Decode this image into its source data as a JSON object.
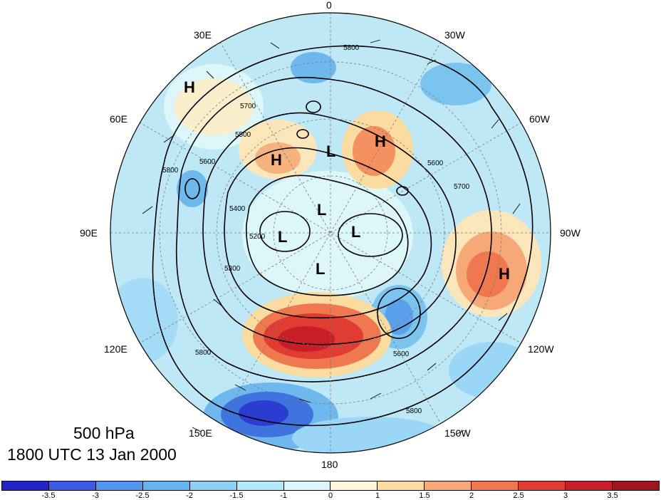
{
  "title": {
    "level": "500 hPa",
    "time": "1800 UTC 13 Jan 2000"
  },
  "longitude_labels": [
    "0",
    "30W",
    "60W",
    "90W",
    "120W",
    "150W",
    "180",
    "150E",
    "120E",
    "90E",
    "60E",
    "30E"
  ],
  "pressure_centers": [
    "H",
    "H",
    "H",
    "H",
    "L",
    "L",
    "L",
    "L",
    "L"
  ],
  "contour_labels": [
    "5800",
    "5800",
    "5700",
    "5600",
    "5500",
    "5400",
    "5300",
    "5200",
    "5600",
    "5700",
    "5800",
    "5600",
    "5800"
  ],
  "colorbar": {
    "tick_labels": [
      "-3.5",
      "-3",
      "-2.5",
      "-2",
      "-1.5",
      "-1",
      "0",
      "1",
      "1.5",
      "2",
      "2.5",
      "3",
      "3.5"
    ],
    "colors": [
      "#2323c8",
      "#3c5ae6",
      "#5096ee",
      "#64b4f2",
      "#8cd2f4",
      "#b4eaf8",
      "#dcf6fa",
      "#fff6dc",
      "#fadca0",
      "#f5aa78",
      "#f07850",
      "#e13c32",
      "#c81e28",
      "#a01420"
    ]
  },
  "colors": {
    "contour": "#000000",
    "background": "#ffffff"
  }
}
